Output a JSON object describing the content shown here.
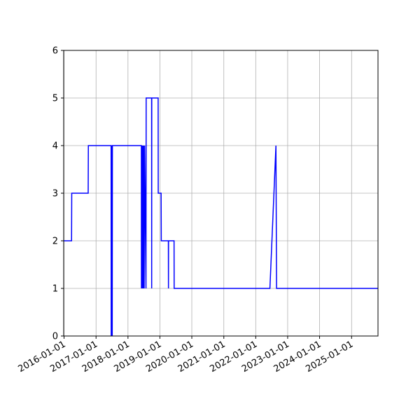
{
  "chart_data": {
    "type": "line",
    "title": "",
    "xlabel": "",
    "ylabel": "",
    "xlim": [
      "2015-12-28",
      "2025-10-30"
    ],
    "ylim": [
      0,
      6
    ],
    "grid": true,
    "line_color": "#0000ff",
    "x_ticks": [
      "2016-01-01",
      "2017-01-01",
      "2018-01-01",
      "2019-01-01",
      "2020-01-01",
      "2021-01-01",
      "2022-01-01",
      "2023-01-01",
      "2024-01-01",
      "2025-01-01"
    ],
    "y_ticks": [
      "0",
      "1",
      "2",
      "3",
      "4",
      "5",
      "6"
    ],
    "series": [
      {
        "x": [
          "2015-12-28",
          "2016-03-27",
          "2016-03-29",
          "2016-10-03",
          "2016-10-05",
          "2017-06-22",
          "2017-06-23",
          "2017-06-25",
          "2017-06-27",
          "2017-06-29",
          "2017-07-01",
          "2017-07-03",
          "2017-07-05",
          "2017-07-07",
          "2018-06-03",
          "2018-06-04",
          "2018-06-06",
          "2018-06-10",
          "2018-06-14",
          "2018-06-18",
          "2018-06-22",
          "2018-06-26",
          "2018-07-01",
          "2018-07-05",
          "2018-07-10",
          "2018-07-26",
          "2018-07-28",
          "2018-09-28",
          "2018-09-29",
          "2018-09-30",
          "2018-12-12",
          "2018-12-13",
          "2019-01-15",
          "2019-01-17",
          "2019-04-08",
          "2019-04-09",
          "2019-04-10",
          "2019-06-12",
          "2019-06-13",
          "2022-06-12",
          "2022-08-20",
          "2022-08-27",
          "2025-10-30"
        ],
        "y": [
          2,
          2,
          3,
          3,
          4,
          4,
          0,
          4,
          0,
          4,
          0,
          4,
          0,
          4,
          4,
          1,
          4,
          1,
          4,
          1,
          4,
          1,
          4,
          1,
          4,
          1,
          5,
          5,
          1,
          5,
          5,
          3,
          3,
          2,
          2,
          1,
          2,
          2,
          1,
          1,
          4,
          1,
          1
        ]
      }
    ]
  }
}
